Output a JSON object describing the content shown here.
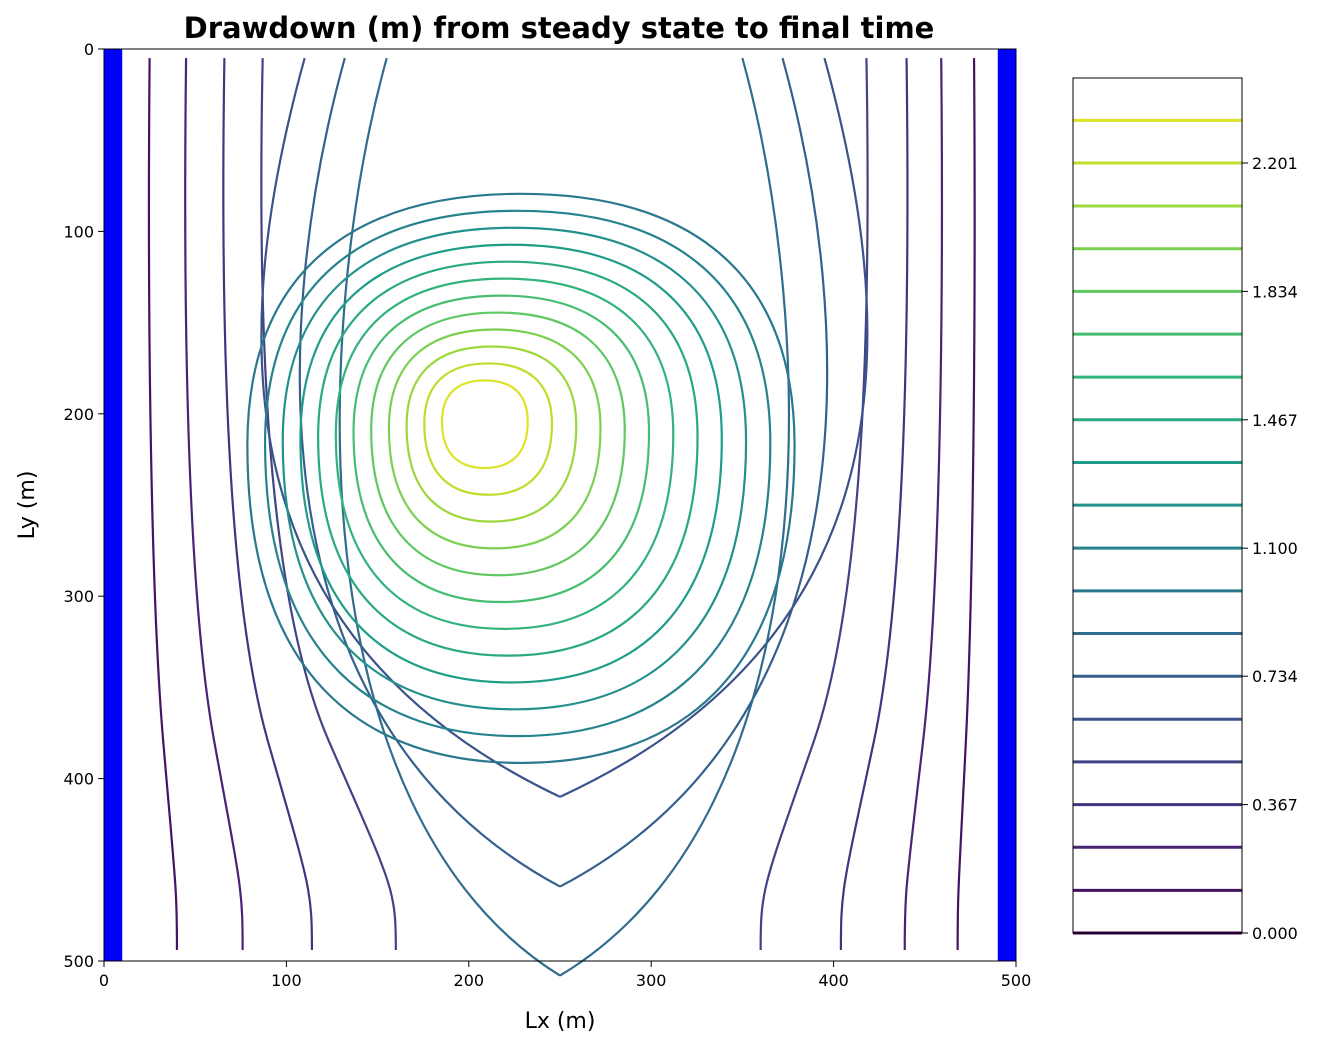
{
  "chart_data": {
    "type": "contour",
    "title": "Drawdown (m) from steady state to final time",
    "xlabel": "Lx (m)",
    "ylabel": "Ly (m)",
    "xlim": [
      0,
      500
    ],
    "ylim": [
      500,
      0
    ],
    "y_inverted": true,
    "xticks": [
      "0",
      "100",
      "200",
      "300",
      "400",
      "500"
    ],
    "yticks": [
      "0",
      "100",
      "200",
      "300",
      "400",
      "500"
    ],
    "colormap": "viridis",
    "boundary_color": "#0000ff",
    "boundaries": [
      {
        "name": "left constant-head boundary",
        "x": [
          0,
          10
        ]
      },
      {
        "name": "right constant-head boundary",
        "x": [
          490,
          500
        ]
      }
    ],
    "well": {
      "x": 207,
      "y": 203
    },
    "contour_levels": [
      0.0,
      0.122,
      0.245,
      0.367,
      0.489,
      0.611,
      0.734,
      0.856,
      0.978,
      1.1,
      1.223,
      1.345,
      1.467,
      1.589,
      1.712,
      1.834,
      1.956,
      2.078,
      2.201,
      2.323
    ],
    "colorbar": {
      "ticks": [
        "0.000",
        "0.367",
        "0.734",
        "1.100",
        "1.467",
        "1.834",
        "2.201"
      ],
      "tick_values": [
        0.0,
        0.367,
        0.734,
        1.1,
        1.467,
        1.834,
        2.201
      ],
      "min": 0.0,
      "max": 2.444
    },
    "open_contours": [
      {
        "level": 0.122,
        "side": "left",
        "top_x": 25,
        "bottom_x": 40
      },
      {
        "level": 0.245,
        "side": "left",
        "top_x": 45,
        "bottom_x": 76
      },
      {
        "level": 0.367,
        "side": "left",
        "top_x": 66,
        "bottom_x": 114
      },
      {
        "level": 0.489,
        "side": "left",
        "top_x": 87,
        "bottom_x": 160
      },
      {
        "level": 0.611,
        "side": "left",
        "top_x": 110,
        "bottom_x": null
      },
      {
        "level": 0.734,
        "side": "left",
        "top_x": 132,
        "bottom_x": null
      },
      {
        "level": 0.856,
        "side": "left",
        "top_x": 155,
        "bottom_x": null
      },
      {
        "level": 0.122,
        "side": "right",
        "top_x": 477,
        "bottom_x": 468
      },
      {
        "level": 0.245,
        "side": "right",
        "top_x": 459,
        "bottom_x": 439
      },
      {
        "level": 0.367,
        "side": "right",
        "top_x": 440,
        "bottom_x": 404
      },
      {
        "level": 0.489,
        "side": "right",
        "top_x": 418,
        "bottom_x": 360
      },
      {
        "level": 0.611,
        "side": "right",
        "top_x": 395,
        "bottom_x": null
      },
      {
        "level": 0.734,
        "side": "right",
        "top_x": 372,
        "bottom_x": null
      },
      {
        "level": 0.856,
        "side": "right",
        "top_x": 350,
        "bottom_x": null
      }
    ]
  }
}
